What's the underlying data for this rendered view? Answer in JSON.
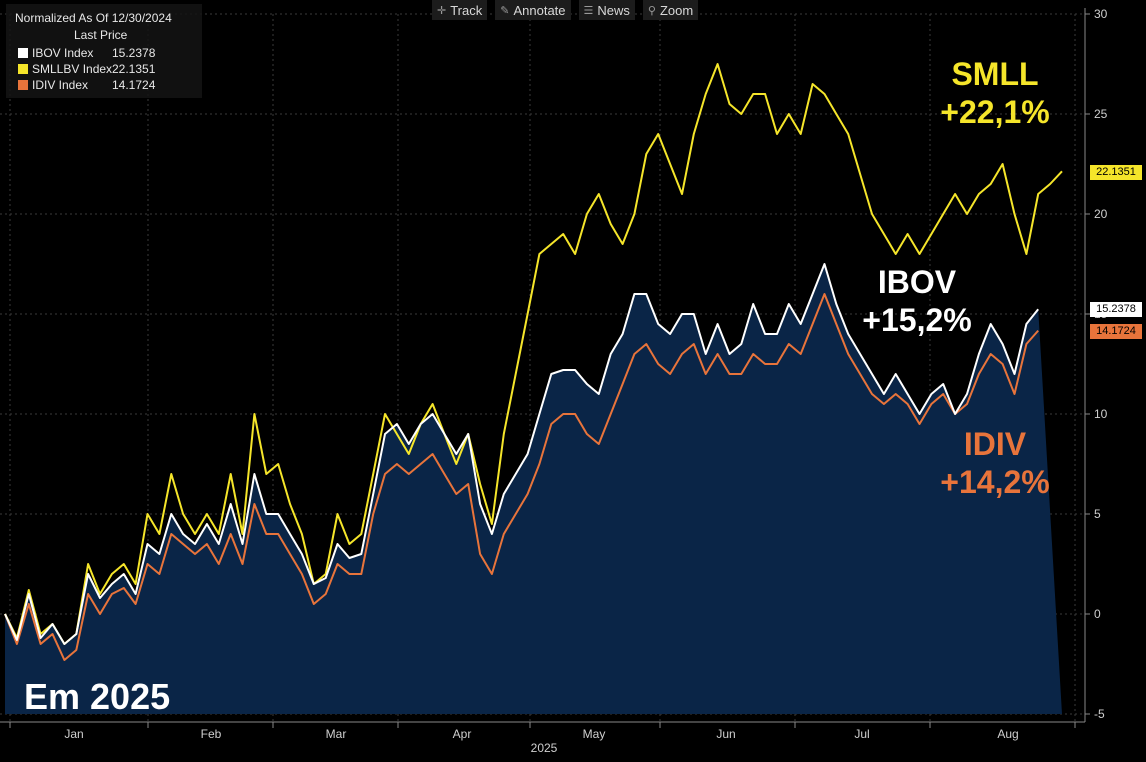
{
  "legend": {
    "header": "Normalized As Of 12/30/2024",
    "subheader": "Last Price",
    "items": [
      {
        "name": "IBOV Index",
        "value": "15.2378",
        "color": "#ffffff"
      },
      {
        "name": "SMLLBV Index",
        "value": "22.1351",
        "color": "#f5e52a"
      },
      {
        "name": "IDIV Index",
        "value": "14.1724",
        "color": "#e8743b"
      }
    ]
  },
  "toolbar": {
    "track": "Track",
    "annotate": "Annotate",
    "news": "News",
    "zoom": "Zoom"
  },
  "annotations": {
    "smll_name": "SMLL",
    "smll_pct": "+22,1%",
    "ibov_name": "IBOV",
    "ibov_pct": "+15,2%",
    "idiv_name": "IDIV",
    "idiv_pct": "+14,2%",
    "period": "Em 2025"
  },
  "chart_data": {
    "type": "line",
    "x_ticks": [
      "Jan",
      "Feb",
      "Mar",
      "Apr",
      "May",
      "Jun",
      "Jul",
      "Aug"
    ],
    "x_year_label": "2025",
    "ylim": [
      -5,
      30
    ],
    "y_ticks": [
      -5,
      0,
      5,
      10,
      15,
      20,
      25,
      30
    ],
    "grid": true,
    "series": [
      {
        "name": "SMLLBV Index",
        "color": "#f5e52a",
        "last": "22.1351",
        "values": [
          0,
          -1.2,
          1.2,
          -1,
          -0.5,
          -1.5,
          -1,
          2.5,
          1,
          2,
          2.5,
          1.5,
          5,
          4,
          7,
          5,
          4,
          5,
          4,
          7,
          4,
          10,
          7,
          7.5,
          5.5,
          4,
          1.5,
          2,
          5,
          3.5,
          4,
          7,
          10,
          9,
          8,
          9.5,
          10.5,
          9,
          7.5,
          9,
          6.5,
          4.5,
          9,
          12,
          15,
          18,
          18.5,
          19,
          18,
          20,
          21,
          19.5,
          18.5,
          20,
          23,
          24,
          22.5,
          21,
          24,
          26,
          27.5,
          25.5,
          25,
          26,
          26,
          24,
          25,
          24,
          26.5,
          26,
          25,
          24,
          22,
          20,
          19,
          18,
          19,
          18,
          19,
          20,
          21,
          20,
          21,
          21.5,
          22.5,
          20,
          18,
          21,
          21.5,
          22.1351
        ]
      },
      {
        "name": "IBOV Index",
        "color": "#ffffff",
        "last": "15.2378",
        "values": [
          0,
          -1.3,
          1,
          -1.2,
          -0.5,
          -1.5,
          -1,
          2,
          0.8,
          1.5,
          2,
          1,
          3.5,
          3,
          5,
          4,
          3.5,
          4.5,
          3.5,
          5.5,
          3.5,
          7,
          5,
          5,
          4,
          3,
          1.5,
          1.8,
          3.5,
          2.8,
          3,
          6,
          9,
          9.5,
          8.5,
          9.5,
          10,
          9,
          8,
          9,
          5.5,
          4,
          6,
          7,
          8,
          10,
          12,
          12.2,
          12.2,
          11.5,
          11,
          13,
          14,
          16,
          16,
          14.5,
          14,
          15,
          15,
          13,
          14.5,
          13,
          13.5,
          15.5,
          14,
          14,
          15.5,
          14.5,
          16,
          17.5,
          15.5,
          14,
          13,
          12,
          11,
          12,
          11,
          10,
          11,
          11.5,
          10,
          11,
          13,
          14.5,
          13.5,
          12,
          14.5,
          15.2378
        ]
      },
      {
        "name": "IDIV Index",
        "color": "#e8743b",
        "last": "14.1724",
        "values": [
          0,
          -1.5,
          0.5,
          -1.5,
          -1,
          -2.3,
          -1.8,
          1,
          0,
          1,
          1.3,
          0.5,
          2.5,
          2,
          4,
          3.5,
          3,
          3.5,
          2.5,
          4,
          2.5,
          5.5,
          4,
          4,
          3,
          2,
          0.5,
          1,
          2.5,
          2,
          2,
          5,
          7,
          7.5,
          7,
          7.5,
          8,
          7,
          6,
          6.5,
          3,
          2,
          4,
          5,
          6,
          7.5,
          9.5,
          10,
          10,
          9,
          8.5,
          10,
          11.5,
          13,
          13.5,
          12.5,
          12,
          13,
          13.5,
          12,
          13,
          12,
          12,
          13,
          12.5,
          12.5,
          13.5,
          13,
          14.5,
          16,
          14.5,
          13,
          12,
          11,
          10.5,
          11,
          10.5,
          9.5,
          10.5,
          11,
          10,
          10.5,
          12,
          13,
          12.5,
          11,
          13.5,
          14.1724
        ]
      }
    ]
  }
}
